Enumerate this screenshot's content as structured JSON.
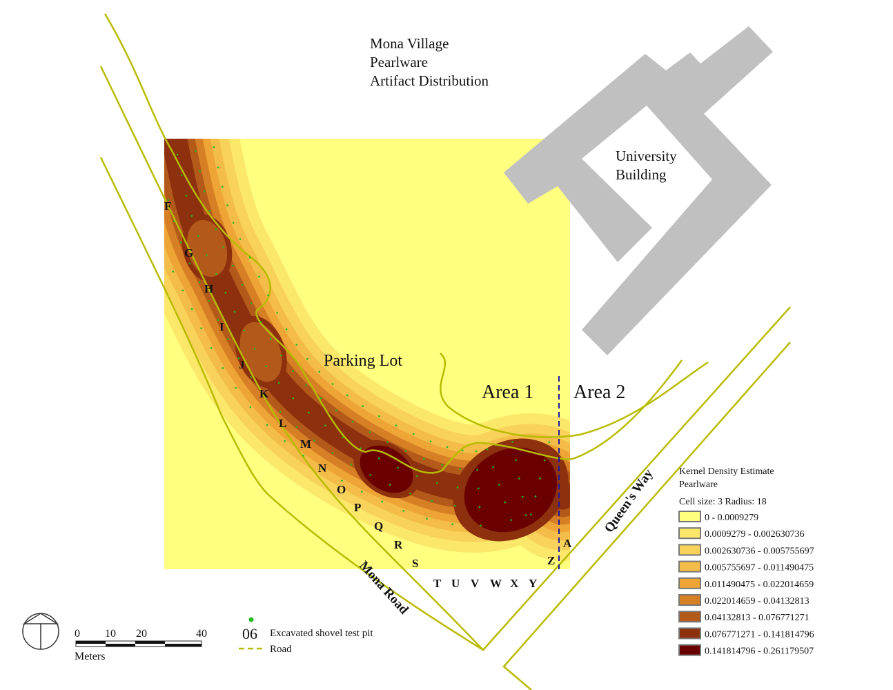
{
  "title": [
    "Mona Village",
    "Pearlware",
    "Artifact Distribution"
  ],
  "places": {
    "building": [
      "University",
      "Building"
    ],
    "parking": "Parking Lot",
    "area1": "Area 1",
    "area2": "Area 2",
    "mona_road": "Mona Road",
    "queens_way": "Queen's Way"
  },
  "grid_letters": [
    "F",
    "G",
    "H",
    "I",
    "J",
    "K",
    "L",
    "M",
    "N",
    "O",
    "P",
    "Q",
    "R",
    "S",
    "T",
    "U",
    "V",
    "W",
    "X",
    "Y",
    "Z",
    "A"
  ],
  "legend": {
    "title": "Kernel Density Estimate",
    "subtitle": "Pearlware",
    "params": "Cell size: 3  Radius: 18",
    "classes": [
      {
        "label": "0 - 0.0009279",
        "color": "#ffff80"
      },
      {
        "label": "0.0009279 - 0.002630736",
        "color": "#fbe86a"
      },
      {
        "label": "0.002630736 - 0.005755697",
        "color": "#f8d25a"
      },
      {
        "label": "0.005755697 - 0.011490475",
        "color": "#f4bc48"
      },
      {
        "label": "0.011490475 - 0.022014659",
        "color": "#eea535"
      },
      {
        "label": "0.022014659 - 0.04132813",
        "color": "#d67f25"
      },
      {
        "label": "0.04132813 - 0.076771271",
        "color": "#b3591a"
      },
      {
        "label": "0.076771271 - 0.141814796",
        "color": "#8c300d"
      },
      {
        "label": "0.141814796 - 0.261179507",
        "color": "#6b0000"
      }
    ]
  },
  "scale": {
    "ticks": [
      "0",
      "10",
      "20",
      "40"
    ],
    "unit": "Meters"
  },
  "symbols": {
    "pit_number": "06",
    "pit_label": "Excavated shovel test pit",
    "road_label": "Road"
  },
  "colors": {
    "road": "#b8bb00",
    "building": "#c0c0c0",
    "pit": "#22bb22",
    "divider": "#1a1a9c"
  }
}
